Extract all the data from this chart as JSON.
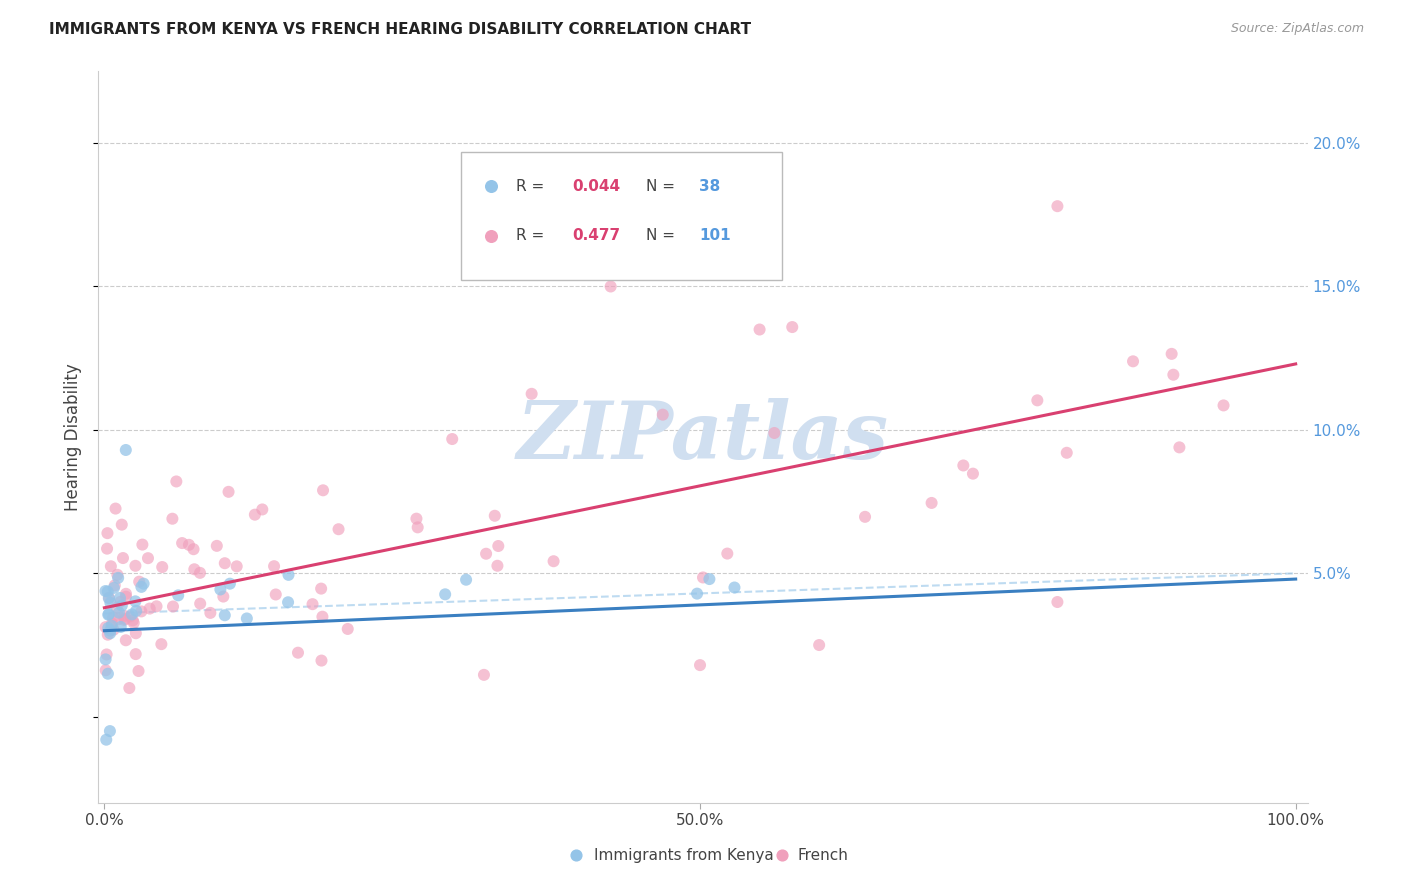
{
  "title": "IMMIGRANTS FROM KENYA VS FRENCH HEARING DISABILITY CORRELATION CHART",
  "source": "Source: ZipAtlas.com",
  "ylabel": "Hearing Disability",
  "color_kenya": "#94c4e8",
  "color_french": "#f0a0bc",
  "color_kenya_line": "#3a7fc1",
  "color_french_line": "#d94070",
  "color_kenya_dashed": "#94c4e8",
  "watermark_color": "#d0dff0",
  "background_color": "#ffffff",
  "grid_color": "#cccccc",
  "right_axis_color": "#5599dd",
  "title_color": "#222222",
  "source_color": "#999999",
  "legend_r_color": "#d94070",
  "legend_n_color": "#5599dd"
}
